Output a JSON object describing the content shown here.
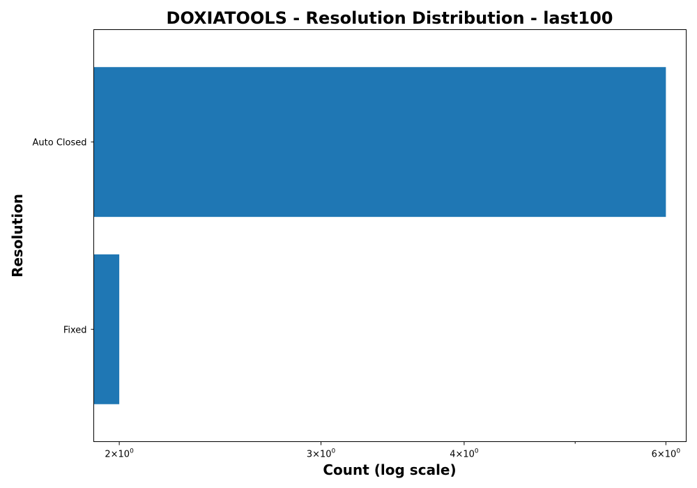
{
  "chart_data": {
    "type": "bar",
    "orientation": "horizontal",
    "title": "DOXIATOOLS - Resolution Distribution - last100",
    "xlabel": "Count (log scale)",
    "ylabel": "Resolution",
    "x_scale": "log",
    "xlim": [
      1.9,
      6.25
    ],
    "categories": [
      "Auto Closed",
      "Fixed"
    ],
    "values": [
      6,
      2
    ],
    "x_ticks": [
      {
        "value": 2,
        "base": "2×10",
        "exp": "0"
      },
      {
        "value": 3,
        "base": "3×10",
        "exp": "0"
      },
      {
        "value": 4,
        "base": "4×10",
        "exp": "0"
      },
      {
        "value": 6,
        "base": "6×10",
        "exp": "0"
      }
    ],
    "x_minor_ticks": [
      5
    ],
    "bar_color": "#1f77b4",
    "grid": false
  }
}
